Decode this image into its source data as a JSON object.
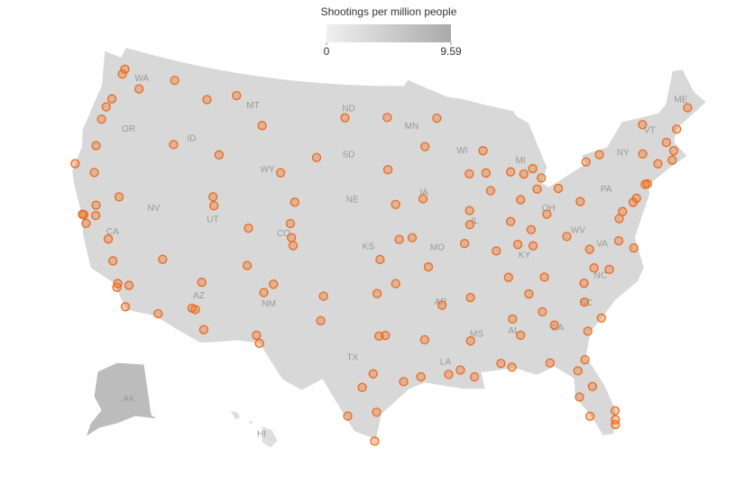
{
  "legend": {
    "title": "Shootings per million people",
    "min": 0,
    "max": 9.59
  },
  "states": [
    "WA",
    "OR",
    "ID",
    "MT",
    "ND",
    "MN",
    "SD",
    "WY",
    "WI",
    "MI",
    "NY",
    "VT",
    "ME",
    "NE",
    "IA",
    "NV",
    "UT",
    "CO",
    "IL",
    "CA",
    "KS",
    "MO",
    "KY",
    "PA",
    "WV",
    "VA",
    "NC",
    "OH",
    "AZ",
    "NM",
    "AR",
    "SC",
    "AL",
    "GA",
    "MS",
    "TX",
    "LA",
    "AK",
    "HI"
  ],
  "points": [
    [
      -122.3,
      47.6
    ],
    [
      -122.4,
      47.25
    ],
    [
      -117.4,
      47.7
    ],
    [
      -120.5,
      46.6
    ],
    [
      -122.7,
      45.5
    ],
    [
      -123,
      44.9
    ],
    [
      -123.1,
      44.05
    ],
    [
      -122.9,
      42.3
    ],
    [
      -116.2,
      43.6
    ],
    [
      -112,
      43.5
    ],
    [
      -108.5,
      45.8
    ],
    [
      -111.3,
      47.5
    ],
    [
      -114,
      46.9
    ],
    [
      -100.8,
      46.8
    ],
    [
      -96.8,
      46.9
    ],
    [
      -96.7,
      43.5
    ],
    [
      -103.2,
      44.1
    ],
    [
      -104.8,
      41.1
    ],
    [
      -106.3,
      42.9
    ],
    [
      -111.9,
      40.76
    ],
    [
      -111.7,
      40.2
    ],
    [
      -105,
      39.7
    ],
    [
      -104.8,
      38.8
    ],
    [
      -104.6,
      38.3
    ],
    [
      -108.5,
      39.1
    ],
    [
      -106.6,
      35.1
    ],
    [
      -106.8,
      32.3
    ],
    [
      -105.9,
      35.7
    ],
    [
      -108.2,
      36.7
    ],
    [
      -112.07,
      33.45
    ],
    [
      -111.8,
      33.4
    ],
    [
      -110.9,
      32.2
    ],
    [
      -111.65,
      35.2
    ],
    [
      -114.6,
      32.7
    ],
    [
      -115.1,
      36.2
    ],
    [
      -119.8,
      39.5
    ],
    [
      -121.5,
      38.6
    ],
    [
      -122.4,
      37.8
    ],
    [
      -122.27,
      37.8
    ],
    [
      -121.9,
      37.3
    ],
    [
      -119.8,
      36.7
    ],
    [
      -119,
      35.4
    ],
    [
      -118.2,
      34.05
    ],
    [
      -118.2,
      33.8
    ],
    [
      -117.3,
      34.1
    ],
    [
      -117.2,
      32.7
    ],
    [
      -122.4,
      40.6
    ],
    [
      -124.2,
      40.8
    ],
    [
      -121.3,
      37.95
    ],
    [
      -93.3,
      44.98
    ],
    [
      -92.1,
      46.8
    ],
    [
      -93.6,
      41.6
    ],
    [
      -96,
      41.26
    ],
    [
      -94.6,
      39.1
    ],
    [
      -97.3,
      37.7
    ],
    [
      -95.7,
      39
    ],
    [
      -90.2,
      38.6
    ],
    [
      -93.3,
      37.2
    ],
    [
      -96,
      36.15
    ],
    [
      -97.5,
      35.5
    ],
    [
      -96.8,
      32.8
    ],
    [
      -97.3,
      32.75
    ],
    [
      -95.4,
      29.8
    ],
    [
      -98.5,
      29.4
    ],
    [
      -97.7,
      30.3
    ],
    [
      -106.5,
      31.8
    ],
    [
      -101.9,
      33.6
    ],
    [
      -101.8,
      35.2
    ],
    [
      -97.4,
      27.8
    ],
    [
      -97.5,
      25.9
    ],
    [
      -99.5,
      27.5
    ],
    [
      -94.1,
      30.1
    ],
    [
      -93.75,
      32.5
    ],
    [
      -91.1,
      30.45
    ],
    [
      -90.07,
      29.95
    ],
    [
      -92,
      30.2
    ],
    [
      -92.3,
      34.7
    ],
    [
      -90.2,
      32.3
    ],
    [
      -90,
      35.1
    ],
    [
      -86.8,
      36.2
    ],
    [
      -83.9,
      35.96
    ],
    [
      -85.3,
      35
    ],
    [
      -86.8,
      33.5
    ],
    [
      -86.3,
      32.4
    ],
    [
      -88,
      30.7
    ],
    [
      -84.4,
      33.75
    ],
    [
      -81.1,
      32.1
    ],
    [
      -83.6,
      32.8
    ],
    [
      -81.65,
      30.3
    ],
    [
      -81.4,
      28.5
    ],
    [
      -82.46,
      27.95
    ],
    [
      -80.2,
      25.8
    ],
    [
      -80.14,
      26.12
    ],
    [
      -80.05,
      26.7
    ],
    [
      -84.3,
      30.4
    ],
    [
      -87.2,
      30.4
    ],
    [
      -81.9,
      26.6
    ],
    [
      -82.3,
      29.65
    ],
    [
      -80.8,
      35.2
    ],
    [
      -78.6,
      35.8
    ],
    [
      -79.8,
      36.07
    ],
    [
      -81,
      34
    ],
    [
      -79.9,
      32.8
    ],
    [
      -77.4,
      37.5
    ],
    [
      -76.3,
      36.85
    ],
    [
      -79.9,
      37.3
    ],
    [
      -77,
      38.9
    ],
    [
      -76.6,
      39.3
    ],
    [
      -75.2,
      39.95
    ],
    [
      -80,
      40.44
    ],
    [
      -74,
      40.7
    ],
    [
      -74.2,
      40.7
    ],
    [
      -78.9,
      42.9
    ],
    [
      -77.6,
      43.2
    ],
    [
      -73.8,
      42.65
    ],
    [
      -71.06,
      42.36
    ],
    [
      -72.7,
      41.8
    ],
    [
      -71.4,
      41.8
    ],
    [
      -70.3,
      43.66
    ],
    [
      -68.8,
      44.8
    ],
    [
      -73.2,
      44.5
    ],
    [
      -71.5,
      43
    ],
    [
      -81.7,
      41.5
    ],
    [
      -83,
      39.96
    ],
    [
      -84.5,
      39.1
    ],
    [
      -83.55,
      41.65
    ],
    [
      -83.05,
      42.33
    ],
    [
      -85.7,
      42.96
    ],
    [
      -84.55,
      42.73
    ],
    [
      -83.7,
      43
    ],
    [
      -87.63,
      41.88
    ],
    [
      -89.65,
      39.8
    ],
    [
      -89.6,
      40.7
    ],
    [
      -86.16,
      39.77
    ],
    [
      -85.1,
      41.1
    ],
    [
      -87.6,
      37.97
    ],
    [
      -85.76,
      38.25
    ],
    [
      -84.5,
      38.05
    ],
    [
      -81.6,
      38.35
    ],
    [
      -87.9,
      43.04
    ],
    [
      -89.4,
      43.07
    ],
    [
      -88,
      44.5
    ],
    [
      -75.55,
      39.74
    ]
  ]
}
